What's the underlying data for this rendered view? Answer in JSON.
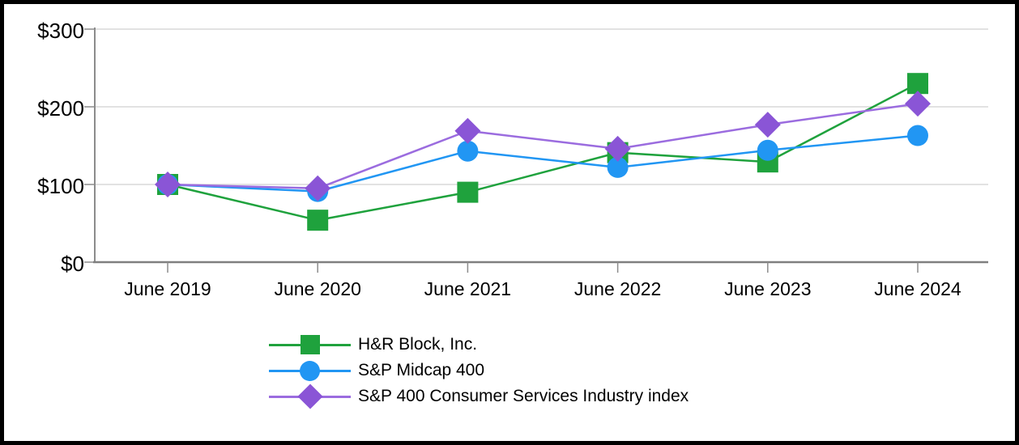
{
  "chart_data": {
    "type": "line",
    "title": "",
    "x": [
      "June 2019",
      "June 2020",
      "June 2021",
      "June 2022",
      "June 2023",
      "June 2024"
    ],
    "series": [
      {
        "name": "H&R Block, Inc.",
        "marker": "square",
        "color": "#1FA23D",
        "values": [
          100,
          54,
          90,
          141,
          129,
          230
        ]
      },
      {
        "name": "S&P Midcap 400",
        "marker": "circle",
        "color": "#2196F3",
        "values": [
          100,
          91,
          143,
          122,
          144,
          163
        ]
      },
      {
        "name": "S&P 400 Consumer Services Industry index",
        "marker": "diamond",
        "color": "#8A55D6",
        "line_color": "#9B6CDF",
        "values": [
          100,
          95,
          169,
          146,
          177,
          204
        ]
      }
    ],
    "ylim": [
      0,
      300
    ],
    "yticks": [
      0,
      100,
      200,
      300
    ],
    "ytick_labels": [
      "$0",
      "$100",
      "$200",
      "$300"
    ],
    "grid": true,
    "legend_position": "bottom",
    "colors": {
      "gridline": "#D9D9D9",
      "axis": "#7F7F7F",
      "tick": "#8C8C8C",
      "text": "#000000",
      "frame_border": "#000000",
      "background": "#FFFFFF"
    }
  }
}
